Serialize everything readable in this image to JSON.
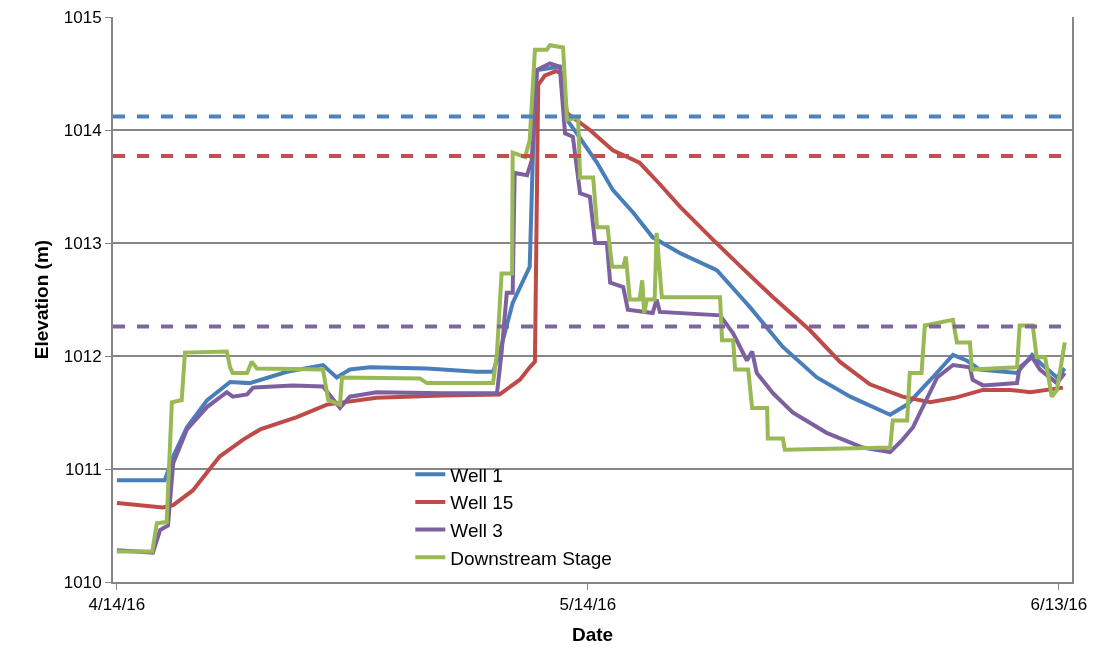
{
  "chart_data": {
    "type": "line",
    "xlabel": "Date",
    "ylabel": "Elevation (m)",
    "xlim": [
      "2016-04-13T18:00",
      "2016-06-13T20:00"
    ],
    "xticks": [
      {
        "value": "2016-04-14",
        "label": "4/14/16"
      },
      {
        "value": "2016-05-14",
        "label": "5/14/16"
      },
      {
        "value": "2016-06-13",
        "label": "6/13/16"
      }
    ],
    "ylim": [
      1010,
      1015
    ],
    "yticks": [
      1010,
      1011,
      1012,
      1013,
      1014,
      1015
    ],
    "grid": "y",
    "legend": "bottom",
    "marker": "none",
    "line_style": "solid",
    "ref_lines": [
      {
        "axis": "y",
        "value": 1014.12,
        "color": "#4f81bd",
        "line_style": "dashed"
      },
      {
        "axis": "y",
        "value": 1013.77,
        "color": "#c0504d",
        "line_style": "dashed"
      },
      {
        "axis": "y",
        "value": 1012.26,
        "color": "#8064a2",
        "line_style": "dashed"
      }
    ],
    "series": [
      {
        "name": "Well 1",
        "color": "#4a7ebb",
        "x": [
          "2016-04-14T00:00",
          "2016-04-17T01:00",
          "2016-04-17T14:00",
          "2016-04-18T11:00",
          "2016-04-19T18:00",
          "2016-04-21T05:00",
          "2016-04-22T11:00",
          "2016-04-24T20:00",
          "2016-04-27T03:00",
          "2016-04-28T00:00",
          "2016-04-28T20:00",
          "2016-04-30T03:00",
          "2016-05-03T18:00",
          "2016-05-06T22:00",
          "2016-05-07T23:00",
          "2016-05-08T09:00",
          "2016-05-09T05:00",
          "2016-05-10T07:00",
          "2016-05-10T12:00",
          "2016-05-10T18:00",
          "2016-05-12T05:00",
          "2016-05-12T16:00",
          "2016-05-13T07:00",
          "2016-05-14T14:00",
          "2016-05-15T14:00",
          "2016-05-16T21:00",
          "2016-05-18T03:00",
          "2016-05-19T21:00",
          "2016-05-22T05:00",
          "2016-05-23T12:00",
          "2016-05-24T08:00",
          "2016-05-26T10:00",
          "2016-05-28T14:00",
          "2016-05-30T17:00",
          "2016-06-02T06:00",
          "2016-06-03T08:00",
          "2016-06-04T23:00",
          "2016-06-06T06:00",
          "2016-06-07T03:00",
          "2016-06-07T23:00",
          "2016-06-10T08:00",
          "2016-06-11T07:00",
          "2016-06-11T19:00",
          "2016-06-12T21:00",
          "2016-06-13T09:00"
        ],
        "values": [
          1010.9,
          1010.9,
          1011.11,
          1011.37,
          1011.61,
          1011.77,
          1011.76,
          1011.86,
          1011.92,
          1011.81,
          1011.88,
          1011.9,
          1011.89,
          1011.86,
          1011.86,
          1012.03,
          1012.47,
          1012.79,
          1013.8,
          1014.53,
          1014.56,
          1014.09,
          1013.97,
          1013.71,
          1013.47,
          1013.27,
          1013.05,
          1012.91,
          1012.76,
          1012.56,
          1012.43,
          1012.08,
          1011.81,
          1011.64,
          1011.48,
          1011.57,
          1011.81,
          1012.01,
          1011.96,
          1011.88,
          1011.85,
          1012.01,
          1011.94,
          1011.81,
          1011.89
        ]
      },
      {
        "name": "Well 15",
        "color": "#be4b48",
        "x": [
          "2016-04-14T00:00",
          "2016-04-16T22:00",
          "2016-04-17T14:00",
          "2016-04-18T20:00",
          "2016-04-20T13:00",
          "2016-04-22T01:00",
          "2016-04-23T03:00",
          "2016-04-25T11:00",
          "2016-04-27T09:00",
          "2016-04-30T13:00",
          "2016-05-04T18:00",
          "2016-05-08T09:00",
          "2016-05-09T16:00",
          "2016-05-10T07:00",
          "2016-05-10T15:00",
          "2016-05-10T20:00",
          "2016-05-11T06:00",
          "2016-05-11T23:00",
          "2016-05-12T08:00",
          "2016-05-12T16:00",
          "2016-05-14T03:00",
          "2016-05-15T14:00",
          "2016-05-17T07:00",
          "2016-05-18T14:00",
          "2016-05-19T21:00",
          "2016-05-21T23:00",
          "2016-05-23T16:00",
          "2016-05-25T19:00",
          "2016-05-28T03:00",
          "2016-05-30T01:00",
          "2016-05-31T23:00",
          "2016-06-03T01:00",
          "2016-06-04T19:00",
          "2016-06-06T09:00",
          "2016-06-08T04:00",
          "2016-06-09T21:00",
          "2016-06-11T04:00",
          "2016-06-13T06:00"
        ],
        "values": [
          1010.7,
          1010.66,
          1010.68,
          1010.81,
          1011.11,
          1011.26,
          1011.35,
          1011.46,
          1011.57,
          1011.63,
          1011.65,
          1011.66,
          1011.79,
          1011.9,
          1011.95,
          1014.4,
          1014.48,
          1014.52,
          1014.5,
          1014.15,
          1014.0,
          1013.82,
          1013.71,
          1013.52,
          1013.32,
          1013.03,
          1012.8,
          1012.52,
          1012.23,
          1011.95,
          1011.75,
          1011.64,
          1011.59,
          1011.63,
          1011.7,
          1011.7,
          1011.68,
          1011.72
        ]
      },
      {
        "name": "Well 3",
        "color": "#7d60a0",
        "x": [
          "2016-04-14T00:00",
          "2016-04-16T07:00",
          "2016-04-16T18:00",
          "2016-04-17T06:00",
          "2016-04-17T14:00",
          "2016-04-18T11:00",
          "2016-04-19T18:00",
          "2016-04-21T00:00",
          "2016-04-21T09:00",
          "2016-04-22T07:00",
          "2016-04-22T16:00",
          "2016-04-25T05:00",
          "2016-04-27T03:00",
          "2016-04-28T05:00",
          "2016-04-28T20:00",
          "2016-04-30T13:00",
          "2016-05-04T18:00",
          "2016-05-08T05:00",
          "2016-05-08T12:00",
          "2016-05-08T20:00",
          "2016-05-09T05:00",
          "2016-05-09T08:00",
          "2016-05-10T03:00",
          "2016-05-10T10:00",
          "2016-05-10T18:00",
          "2016-05-11T14:00",
          "2016-05-12T05:00",
          "2016-05-12T13:00",
          "2016-05-13T01:00",
          "2016-05-13T12:00",
          "2016-05-14T03:00",
          "2016-05-14T11:00",
          "2016-05-15T05:00",
          "2016-05-15T10:00",
          "2016-05-16T06:00",
          "2016-05-16T13:00",
          "2016-05-18T03:00",
          "2016-05-18T09:00",
          "2016-05-18T14:00",
          "2016-05-22T10:00",
          "2016-05-23T06:00",
          "2016-05-24T03:00",
          "2016-05-24T11:00",
          "2016-05-24T18:00",
          "2016-05-25T19:00",
          "2016-05-27T01:00",
          "2016-05-29T05:00",
          "2016-05-31T12:00",
          "2016-06-02T06:00",
          "2016-06-03T01:00",
          "2016-06-03T17:00",
          "2016-06-04T08:00",
          "2016-06-05T06:00",
          "2016-06-06T06:00",
          "2016-06-07T08:00",
          "2016-06-07T12:00",
          "2016-06-08T04:00",
          "2016-06-10T08:00",
          "2016-06-10T12:00",
          "2016-06-11T07:00",
          "2016-06-11T19:00",
          "2016-06-12T21:00",
          "2016-06-13T09:00"
        ],
        "values": [
          1010.28,
          1010.26,
          1010.46,
          1010.5,
          1011.05,
          1011.35,
          1011.55,
          1011.68,
          1011.64,
          1011.66,
          1011.72,
          1011.74,
          1011.73,
          1011.54,
          1011.64,
          1011.68,
          1011.67,
          1011.67,
          1012.03,
          1012.56,
          1012.56,
          1013.62,
          1013.6,
          1013.73,
          1014.53,
          1014.59,
          1014.56,
          1013.97,
          1013.94,
          1013.44,
          1013.41,
          1013.0,
          1013.0,
          1012.65,
          1012.61,
          1012.41,
          1012.38,
          1012.5,
          1012.39,
          1012.36,
          1012.2,
          1011.96,
          1012.04,
          1011.85,
          1011.67,
          1011.5,
          1011.32,
          1011.19,
          1011.15,
          1011.26,
          1011.37,
          1011.55,
          1011.81,
          1011.92,
          1011.9,
          1011.79,
          1011.74,
          1011.76,
          1011.9,
          1011.99,
          1011.88,
          1011.76,
          1011.85
        ]
      },
      {
        "name": "Downstream Stage",
        "color": "#98b954",
        "x": [
          "2016-04-14T00:00",
          "2016-04-16T06:00",
          "2016-04-16T13:00",
          "2016-04-17T04:00",
          "2016-04-17T12:00",
          "2016-04-18T03:00",
          "2016-04-18T08:00",
          "2016-04-21T00:00",
          "2016-04-21T05:00",
          "2016-04-21T09:00",
          "2016-04-22T07:00",
          "2016-04-22T14:00",
          "2016-04-22T22:00",
          "2016-04-27T03:00",
          "2016-04-27T11:00",
          "2016-04-28T05:00",
          "2016-04-28T08:00",
          "2016-05-03T07:00",
          "2016-05-03T18:00",
          "2016-05-07T23:00",
          "2016-05-08T05:00",
          "2016-05-08T12:00",
          "2016-05-09T04:00",
          "2016-05-09T05:00",
          "2016-05-10T00:00",
          "2016-05-10T07:00",
          "2016-05-10T15:00",
          "2016-05-11T09:00",
          "2016-05-11T14:00",
          "2016-05-12T10:00",
          "2016-05-12T16:00",
          "2016-05-13T09:00",
          "2016-05-13T12:00",
          "2016-05-14T08:00",
          "2016-05-14T14:00",
          "2016-05-15T06:00",
          "2016-05-15T13:00",
          "2016-05-16T06:00",
          "2016-05-16T10:00",
          "2016-05-16T16:00",
          "2016-05-17T07:00",
          "2016-05-17T11:00",
          "2016-05-17T14:00",
          "2016-05-17T18:00",
          "2016-05-18T06:00",
          "2016-05-18T09:00",
          "2016-05-18T17:00",
          "2016-05-22T10:00",
          "2016-05-22T13:00",
          "2016-05-23T06:00",
          "2016-05-23T09:00",
          "2016-05-24T05:00",
          "2016-05-24T11:00",
          "2016-05-25T10:00",
          "2016-05-25T11:00",
          "2016-05-26T10:00",
          "2016-05-26T13:00",
          "2016-06-02T06:00",
          "2016-06-02T10:00",
          "2016-06-03T08:00",
          "2016-06-03T12:00",
          "2016-06-04T06:00",
          "2016-06-04T11:00",
          "2016-06-06T06:00",
          "2016-06-06T12:00",
          "2016-06-07T08:00",
          "2016-06-07T11:00",
          "2016-06-10T08:00",
          "2016-06-10T12:00",
          "2016-06-11T08:00",
          "2016-06-11T14:00",
          "2016-06-12T03:00",
          "2016-06-12T13:00",
          "2016-06-12T21:00",
          "2016-06-13T09:00"
        ],
        "values": [
          1010.27,
          1010.27,
          1010.52,
          1010.53,
          1011.59,
          1011.61,
          1012.03,
          1012.04,
          1011.9,
          1011.85,
          1011.85,
          1011.95,
          1011.89,
          1011.88,
          1011.61,
          1011.57,
          1011.81,
          1011.8,
          1011.76,
          1011.76,
          1012.03,
          1012.73,
          1012.73,
          1013.8,
          1013.76,
          1013.91,
          1014.71,
          1014.71,
          1014.75,
          1014.73,
          1014.09,
          1014.11,
          1013.58,
          1013.58,
          1013.14,
          1013.14,
          1012.79,
          1012.79,
          1012.88,
          1012.5,
          1012.5,
          1012.67,
          1012.38,
          1012.5,
          1012.5,
          1013.09,
          1012.52,
          1012.52,
          1012.14,
          1012.14,
          1011.88,
          1011.88,
          1011.54,
          1011.54,
          1011.27,
          1011.27,
          1011.17,
          1011.19,
          1011.43,
          1011.43,
          1011.85,
          1011.85,
          1012.27,
          1012.32,
          1012.12,
          1012.12,
          1011.88,
          1011.9,
          1012.27,
          1012.27,
          1011.99,
          1011.99,
          1011.64,
          1011.7,
          1012.12
        ]
      }
    ]
  }
}
